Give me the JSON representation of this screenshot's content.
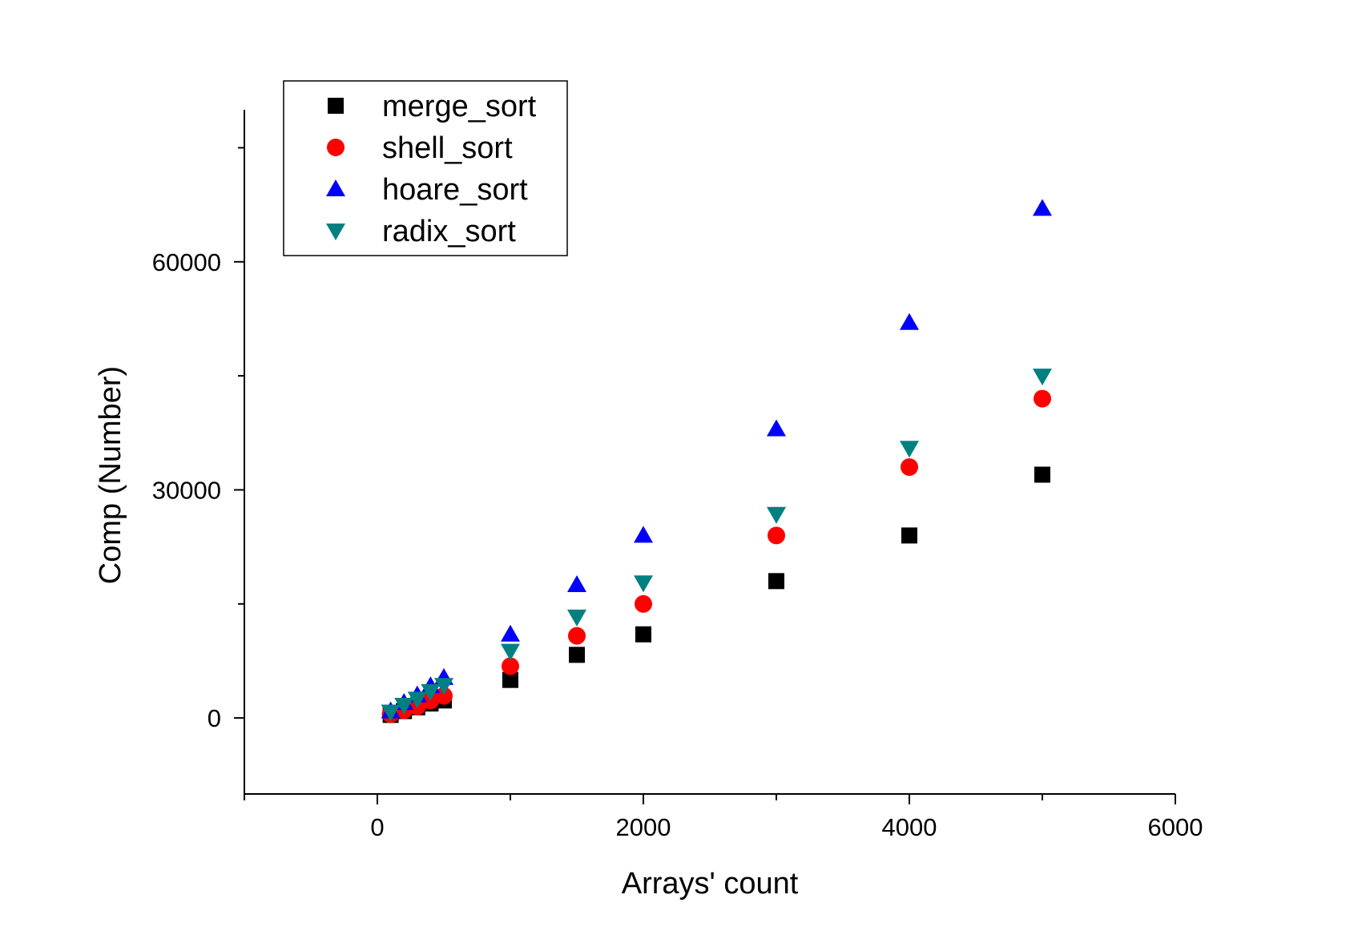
{
  "chart_data": {
    "type": "scatter",
    "title": "",
    "xlabel": "Arrays' count",
    "ylabel": "Comp (Number)",
    "xlim": [
      -1000,
      6000
    ],
    "ylim": [
      -10000,
      80000
    ],
    "x_ticks": [
      0,
      2000,
      4000,
      6000
    ],
    "x_tick_labels": [
      "0",
      "2000",
      "4000",
      "6000"
    ],
    "y_ticks": [
      0,
      30000,
      60000
    ],
    "y_tick_labels": [
      "0",
      "30000",
      "60000"
    ],
    "grid": false,
    "legend_position": "top-left",
    "x": [
      100,
      200,
      300,
      400,
      500,
      1000,
      1500,
      2000,
      3000,
      4000,
      5000
    ],
    "series": [
      {
        "name": "merge_sort",
        "marker": "square",
        "color": "#000000",
        "values": [
          400,
          900,
          1400,
          1900,
          2300,
          5000,
          8300,
          11000,
          18000,
          24000,
          32000
        ]
      },
      {
        "name": "shell_sort",
        "marker": "circle",
        "color": "#ff0000",
        "values": [
          500,
          1000,
          1500,
          2300,
          2900,
          6800,
          10800,
          15000,
          24000,
          33000,
          42000
        ]
      },
      {
        "name": "hoare_sort",
        "marker": "triangle-up",
        "color": "#0000ff",
        "values": [
          900,
          2000,
          3000,
          4200,
          5300,
          11000,
          17500,
          24000,
          38000,
          52000,
          67000
        ]
      },
      {
        "name": "radix_sort",
        "marker": "triangle-down",
        "color": "#008080",
        "values": [
          800,
          1700,
          2500,
          3500,
          4300,
          8800,
          13300,
          17800,
          26800,
          35500,
          45000
        ]
      }
    ]
  }
}
